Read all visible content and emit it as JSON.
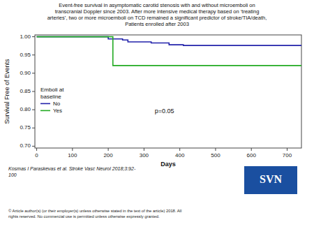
{
  "chart_data": {
    "type": "step",
    "title": "Event-free survival in asymptomatic carotid stenosis with and without microemboli on\ntranscranial Doppler since 2003. After more intensive medical therapy based on ‘treating\narteries’, two or more microemboli on TCD remained a significant predictor of stroke/TIA/death,\nPatients enrolled after 2003",
    "x_label": "Days",
    "y_label": "Survival Free of Events",
    "xlim": [
      -5,
      740
    ],
    "ylim": [
      0.695,
      1.005
    ],
    "xticks": [
      0,
      100,
      200,
      300,
      400,
      500,
      600,
      700
    ],
    "yticks": [
      {
        "value": 0.7,
        "label": "0.70"
      },
      {
        "value": 0.75,
        "label": "0.75"
      },
      {
        "value": 0.8,
        "label": "0.80"
      },
      {
        "value": 0.85,
        "label": "0.85"
      },
      {
        "value": 0.9,
        "label": "0.90"
      },
      {
        "value": 0.95,
        "label": "0.95"
      },
      {
        "value": 1.0,
        "label": "1.00"
      }
    ],
    "grid": false,
    "legend": "lower left",
    "legend_title": "Emboli at\nbaseline",
    "series": [
      {
        "name": "No",
        "color": "#2222aa",
        "x": [
          0,
          195,
          200,
          240,
          255,
          320,
          370,
          410,
          740
        ],
        "values": [
          1.0,
          1.0,
          0.994,
          0.991,
          0.986,
          0.983,
          0.978,
          0.976,
          0.976
        ]
      },
      {
        "name": "Yes",
        "color": "#22aa22",
        "x": [
          0,
          208,
          213,
          740
        ],
        "values": [
          1.0,
          1.0,
          0.921,
          0.921
        ]
      }
    ],
    "annotations": [
      {
        "text": "p=0.05",
        "x": 330,
        "y": 0.795
      }
    ],
    "citation": "Kosmas I Paraskevas et al. Stroke Vasc Neurol 2018;3:92-\n100",
    "copyright": "© Article author(s) (or their employer(s) unless otherwise stated in the text of the article) 2018. All\nrights reserved. No commercial use is permitted unless otherwise expressly granted.",
    "badge": "SVN"
  }
}
